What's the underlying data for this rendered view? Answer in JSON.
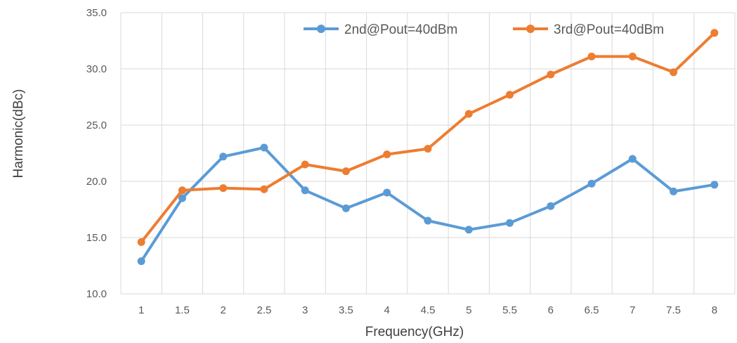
{
  "chart_data": {
    "type": "line",
    "xlabel": "Frequency(GHz)",
    "ylabel": "Harmonic(dBc)",
    "categories": [
      "1",
      "1.5",
      "2",
      "2.5",
      "3",
      "3.5",
      "4",
      "4.5",
      "5",
      "5.5",
      "6",
      "6.5",
      "7",
      "7.5",
      "8"
    ],
    "ylim": [
      10,
      35
    ],
    "yticks": [
      "10.0",
      "15.0",
      "20.0",
      "25.0",
      "30.0",
      "35.0"
    ],
    "grid": true,
    "legend_position": "top-right",
    "series": [
      {
        "name": "2nd@Pout=40dBm",
        "color": "#5b9bd5",
        "values": [
          12.9,
          18.5,
          22.2,
          23.0,
          19.2,
          17.6,
          19.0,
          16.5,
          15.7,
          16.3,
          17.8,
          19.8,
          22.0,
          19.1,
          19.7
        ]
      },
      {
        "name": "3rd@Pout=40dBm",
        "color": "#ed7d31",
        "values": [
          14.6,
          19.2,
          19.4,
          19.3,
          21.5,
          20.9,
          22.4,
          22.9,
          26.0,
          27.7,
          29.5,
          31.1,
          31.1,
          29.7,
          33.2
        ]
      }
    ]
  }
}
